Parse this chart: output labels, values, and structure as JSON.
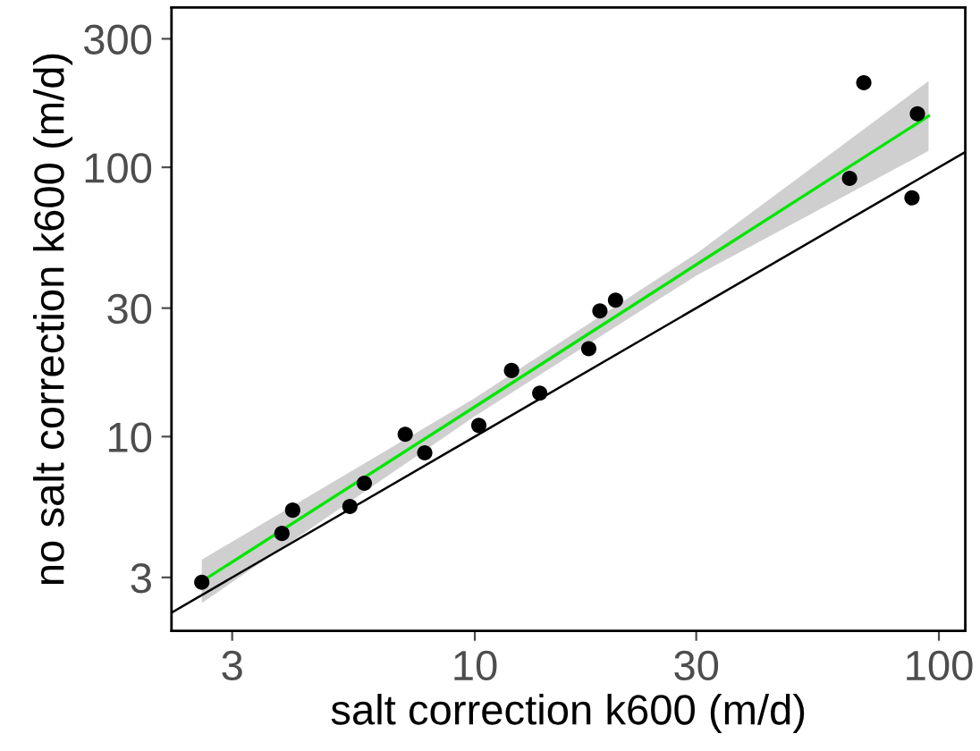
{
  "chart_data": {
    "type": "scatter",
    "xlabel": "salt correction k600 (m/d)",
    "ylabel": "no salt correction k600 (m/d)",
    "log": "xy",
    "xlim": [
      2.22,
      114
    ],
    "ylim": [
      1.9,
      392
    ],
    "xticks": [
      3,
      10,
      30,
      100
    ],
    "yticks": [
      3,
      10,
      30,
      100,
      300
    ],
    "grid": false,
    "legend": false,
    "series": [
      {
        "type": "line",
        "marker": "none",
        "color": "#000000",
        "x": [
          2.22,
          114
        ],
        "values": [
          2.22,
          114
        ]
      },
      {
        "type": "line",
        "marker": "none",
        "color": "#00e600",
        "x": [
          2.58,
          10,
          30,
          95
        ],
        "values": [
          2.9,
          12.9,
          43.5,
          155
        ],
        "lower": [
          2.41,
          11.9,
          39.6,
          115
        ],
        "upper": [
          3.49,
          13.9,
          47.8,
          209
        ]
      },
      {
        "marker": "circle",
        "color": "#000000",
        "x": [
          2.58,
          3.84,
          4.05,
          5.38,
          5.78,
          7.08,
          7.8,
          10.2,
          12.0,
          13.8,
          17.6,
          18.6,
          20.1,
          64.2,
          68.9,
          87.5,
          89.9
        ],
        "values": [
          2.88,
          4.37,
          5.33,
          5.5,
          6.71,
          10.2,
          8.7,
          11.0,
          17.6,
          14.5,
          21.2,
          29.3,
          32.1,
          91,
          206,
          77,
          158
        ]
      }
    ]
  }
}
